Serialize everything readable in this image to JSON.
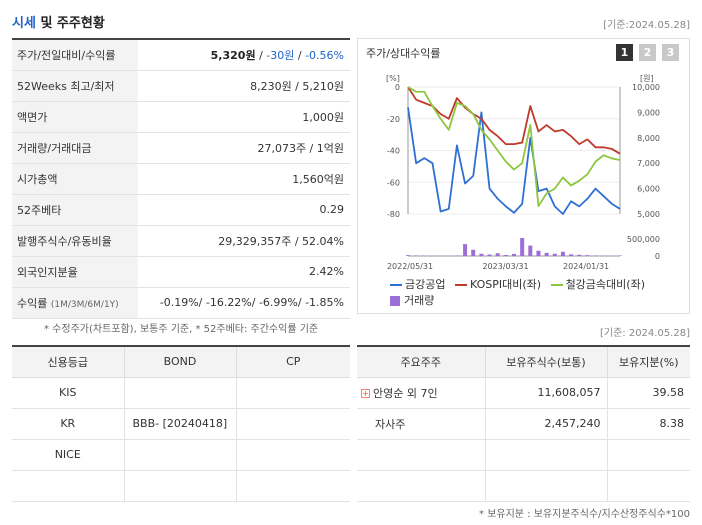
{
  "header": {
    "title_highlight": "시세",
    "title_rest": " 및 주주현황",
    "date": "[기준:2024.05.28]"
  },
  "info_rows": [
    {
      "label": "주가/전일대비/수익률",
      "price": "5,320원",
      "sep1": " / ",
      "change": "-30원",
      "sep2": " / ",
      "rate": "-0.56%"
    },
    {
      "label": "52Weeks 최고/최저",
      "value": "8,230원 / 5,210원"
    },
    {
      "label": "액면가",
      "value": "1,000원"
    },
    {
      "label": "거래량/거래대금",
      "value": "27,073주 / 1억원"
    },
    {
      "label": "시가총액",
      "value": "1,560억원"
    },
    {
      "label": "52주베타",
      "value": "0.29"
    },
    {
      "label": "발행주식수/유동비율",
      "value": "29,329,357주 / 52.04%"
    },
    {
      "label": "외국인지분율",
      "value": "2.42%"
    },
    {
      "label": "수익률",
      "label_small": "(1M/3M/6M/1Y)",
      "value": "-0.19%/ -16.22%/ -6.99%/ -1.85%"
    }
  ],
  "footnote1": "* 수정주가(차트포함), 보통주 기준, * 52주베타: 주간수익률 기준",
  "date2": "[기준: 2024.05.28]",
  "chart": {
    "title": "주가/상대수익률",
    "tabs": [
      "1",
      "2",
      "3"
    ],
    "left_unit": "[%]",
    "right_unit": "[원]",
    "legend": [
      "금강공업",
      "KOSPI대비(좌)",
      "철강금속대비(좌)",
      "거래량"
    ],
    "colors": {
      "stock": "#2e6fd4",
      "kospi": "#c0392b",
      "steel": "#8dc63f",
      "volume": "#9b6fd6"
    }
  },
  "chart_data": {
    "type": "line",
    "x_ticks": [
      "2022/05/31",
      "2023/03/31",
      "2024/01/31"
    ],
    "y_left_ticks": [
      0,
      -20,
      -40,
      -60,
      -80
    ],
    "y_left_top_label": "[%]",
    "y_right_ticks": [
      "10,000",
      "9,000",
      "8,000",
      "7,000",
      "6,000",
      "5,000"
    ],
    "y_volume_ticks": [
      "500,000",
      "0"
    ],
    "ylim_left": [
      -80,
      0
    ],
    "ylim_right": [
      5000,
      10000
    ],
    "series": [
      {
        "name": "금강공업",
        "axis": "right",
        "values": [
          9200,
          7000,
          7200,
          7000,
          5100,
          5200,
          7700,
          6200,
          6500,
          9000,
          6000,
          5600,
          5300,
          5050,
          5400,
          8000,
          5900,
          6000,
          5300,
          5000,
          5500,
          5300,
          5600,
          6000,
          5700,
          5400,
          5200
        ]
      },
      {
        "name": "KOSPI대비(좌)",
        "axis": "left",
        "values": [
          0,
          -8,
          -10,
          -12,
          -17,
          -20,
          -7,
          -13,
          -17,
          -20,
          -27,
          -31,
          -36,
          -36,
          -35,
          -12,
          -28,
          -24,
          -28,
          -27,
          -31,
          -36,
          -33,
          -38,
          -38,
          -39,
          -42
        ]
      },
      {
        "name": "철강금속대비(좌)",
        "axis": "left",
        "values": [
          0,
          -3,
          -3,
          -12,
          -20,
          -27,
          -10,
          -12,
          -17,
          -27,
          -33,
          -40,
          -47,
          -52,
          -48,
          -24,
          -75,
          -67,
          -64,
          -57,
          -62,
          -59,
          -55,
          -47,
          -43,
          -45,
          -46
        ]
      }
    ],
    "volume": [
      60000,
      40000,
      30000,
      25000,
      20000,
      15000,
      40000,
      860000,
      450000,
      160000,
      110000,
      200000,
      70000,
      150000,
      1300000,
      750000,
      380000,
      230000,
      160000,
      300000,
      120000,
      90000,
      60000,
      40000,
      30000,
      25000,
      40000
    ]
  },
  "credit": {
    "headers": [
      "신용등급",
      "BOND",
      "CP"
    ],
    "rows": [
      [
        "KIS",
        "",
        ""
      ],
      [
        "KR",
        "BBB-  [20240418]",
        ""
      ],
      [
        "NICE",
        "",
        ""
      ],
      [
        "",
        "",
        ""
      ]
    ]
  },
  "holders": {
    "headers": [
      "주요주주",
      "보유주식수(보통)",
      "보유지분(%)"
    ],
    "rows": [
      {
        "name": "안영순 외 7인",
        "expand": true,
        "shares": "11,608,057",
        "pct": "39.58"
      },
      {
        "name": "자사주",
        "expand": false,
        "shares": "2,457,240",
        "pct": "8.38"
      },
      {
        "name": "",
        "expand": false,
        "shares": "",
        "pct": ""
      },
      {
        "name": "",
        "expand": false,
        "shares": "",
        "pct": ""
      }
    ]
  },
  "footnote2": "* 보유지분 : 보유지분주식수/지수산정주식수*100"
}
